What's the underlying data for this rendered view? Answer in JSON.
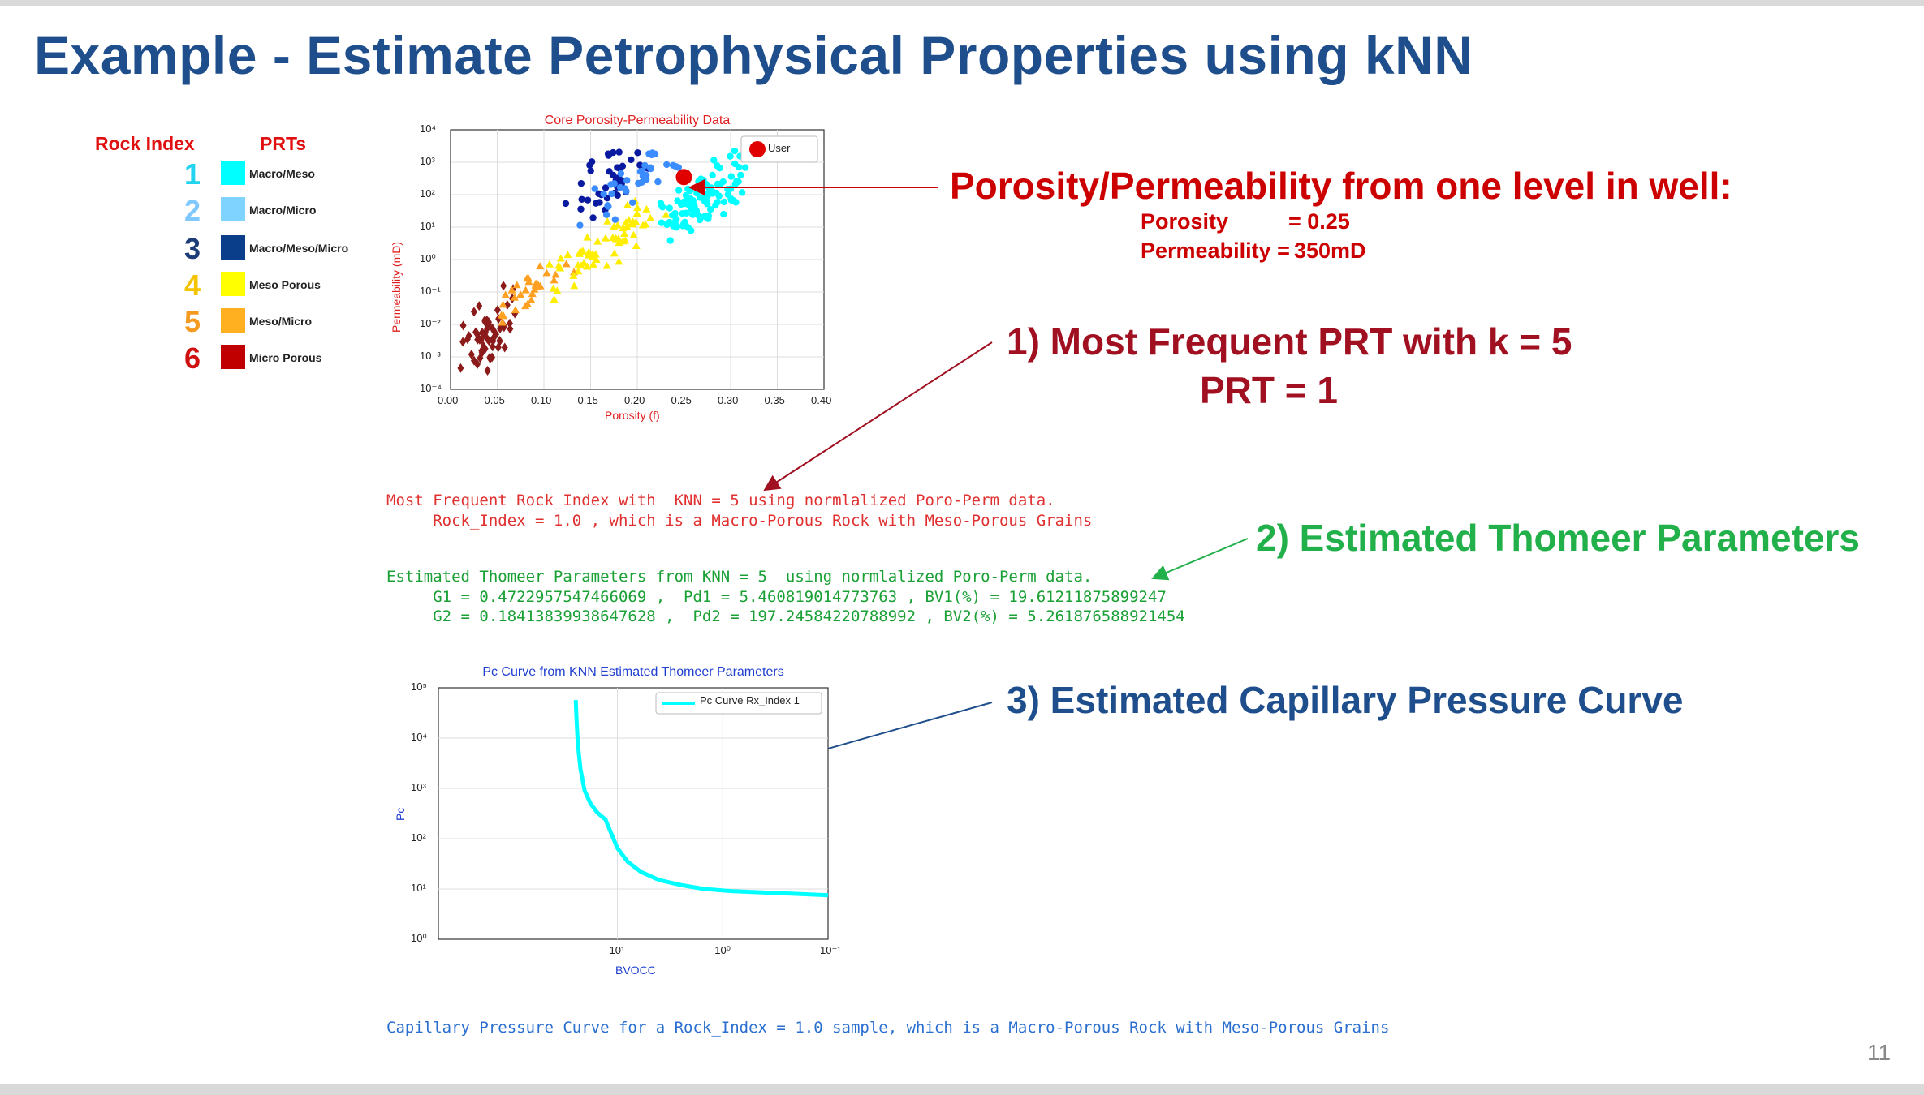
{
  "slide": {
    "title": "Example - Estimate Petrophysical Properties using kNN",
    "page_number": "11"
  },
  "legend": {
    "rock_index_header": "Rock Index",
    "prts_header": "PRTs",
    "items": [
      {
        "index": "1",
        "label": "Macro/Meso",
        "color": "#00ffff",
        "num_color": "#22d3f0"
      },
      {
        "index": "2",
        "label": "Macro/Micro",
        "color": "#7fd4ff",
        "num_color": "#7fc9ff"
      },
      {
        "index": "3",
        "label": "Macro/Meso/Micro",
        "color": "#0b3e8a",
        "num_color": "#1c3d78"
      },
      {
        "index": "4",
        "label": "Meso Porous",
        "color": "#ffff00",
        "num_color": "#f5c400"
      },
      {
        "index": "5",
        "label": "Meso/Micro",
        "color": "#ffb020",
        "num_color": "#f59a20"
      },
      {
        "index": "6",
        "label": "Micro Porous",
        "color": "#c00000",
        "num_color": "#d01010"
      }
    ]
  },
  "callouts": {
    "c1_title": "Porosity/Permeability from one level in well:",
    "c1_porosity_label": "Porosity",
    "c1_porosity_value": "= 0.25",
    "c1_perm_label": "Permeability =",
    "c1_perm_value": "350mD",
    "c2_line1": "1) Most Frequent PRT with k = 5",
    "c2_line2": "PRT = 1",
    "c3": "2) Estimated Thomeer Parameters",
    "c4": "3) Estimated Capillary Pressure Curve"
  },
  "console": {
    "line1": "Most Frequent Rock_Index with  KNN = 5 using normlalized Poro-Perm data.",
    "line2": "     Rock_Index = 1.0 , which is a Macro-Porous Rock with Meso-Porous Grains",
    "line3": "Estimated Thomeer Parameters from KNN = 5  using normlalized Poro-Perm data.",
    "line4": "     G1 = 0.4722957547466069 ,  Pd1 = 5.460819014773763 , BV1(%) = 19.61211875899247",
    "line5": "     G2 = 0.18413839938647628 ,  Pd2 = 197.24584220788992 , BV2(%) = 5.261876588921454",
    "line6": "Capillary Pressure Curve for a Rock_Index = 1.0 sample, which is a Macro-Porous Rock with Meso-Porous Grains"
  },
  "colors": {
    "title_blue": "#1f4e8c",
    "callout_red": "#cc0000",
    "callout_green": "#22b04a",
    "callout_blue": "#1f4e8c",
    "console_red": "#e03030",
    "console_green": "#1aa035",
    "console_blue": "#2a6fd0"
  },
  "chart_data": [
    {
      "type": "scatter",
      "title": "Core Porosity-Permeability Data",
      "xlabel": "Porosity (f)",
      "ylabel": "Permeability (mD)",
      "xlim": [
        0.0,
        0.4
      ],
      "ylim_log10": [
        -4,
        4
      ],
      "y_scale": "log",
      "grid": true,
      "legend_placement": "top-right",
      "x_ticks": [
        "0.00",
        "0.05",
        "0.10",
        "0.15",
        "0.20",
        "0.25",
        "0.30",
        "0.35",
        "0.40"
      ],
      "y_ticks": [
        "10⁻⁴",
        "10⁻³",
        "10⁻²",
        "10⁻¹",
        "10⁰",
        "10¹",
        "10²",
        "10³",
        "10⁴"
      ],
      "legend": [
        "User"
      ],
      "user_point": {
        "x": 0.25,
        "y": 350
      },
      "series": [
        {
          "rock_index": 1,
          "color": "#00ffff",
          "marker": "circle",
          "center": [
            0.27,
            2.0
          ],
          "spread": [
            0.035,
            0.8
          ],
          "n": 110
        },
        {
          "rock_index": 2,
          "color": "#3a8cff",
          "marker": "circle",
          "center": [
            0.2,
            2.3
          ],
          "spread": [
            0.04,
            0.7
          ],
          "n": 35
        },
        {
          "rock_index": 3,
          "color": "#0a1aa0",
          "marker": "circle",
          "center": [
            0.17,
            2.5
          ],
          "spread": [
            0.04,
            0.7
          ],
          "n": 40
        },
        {
          "rock_index": 4,
          "color": "#ffee00",
          "marker": "triangle",
          "center": [
            0.17,
            0.5
          ],
          "spread": [
            0.045,
            0.6
          ],
          "n": 65
        },
        {
          "rock_index": 5,
          "color": "#ffa020",
          "marker": "triangle",
          "center": [
            0.09,
            -0.8
          ],
          "spread": [
            0.03,
            0.5
          ],
          "n": 30
        },
        {
          "rock_index": 6,
          "color": "#8b1a1a",
          "marker": "diamond",
          "center": [
            0.045,
            -2.2
          ],
          "spread": [
            0.025,
            0.8
          ],
          "n": 60
        }
      ]
    },
    {
      "type": "line",
      "title": "Pc Curve from KNN Estimated Thomeer Parameters",
      "xlabel": "BVOCC",
      "ylabel": "Pc",
      "x_scale": "log-reversed",
      "y_scale": "log",
      "xlim_log10": [
        2.7,
        -1
      ],
      "ylim_log10": [
        0,
        5
      ],
      "grid": true,
      "legend_placement": "top-right",
      "x_ticks": [
        "10¹",
        "10⁰",
        "10⁻¹"
      ],
      "y_ticks": [
        "10⁰",
        "10¹",
        "10²",
        "10³",
        "10⁴",
        "10⁵"
      ],
      "series": [
        {
          "name": "Pc Curve Rx_Index 1",
          "color": "#00ffff",
          "bvocc": [
            24.87,
            24.5,
            23.8,
            22.5,
            20.5,
            18.0,
            15.5,
            13.0,
            11.5,
            10.0,
            8.0,
            6.0,
            4.0,
            2.5,
            1.5,
            0.8,
            0.4,
            0.2,
            0.1
          ],
          "pc": [
            57000,
            25000,
            8000,
            2500,
            900,
            500,
            330,
            240,
            130,
            65,
            35,
            22,
            15,
            12,
            10,
            9,
            8.5,
            8.0,
            7.5
          ]
        }
      ]
    }
  ]
}
